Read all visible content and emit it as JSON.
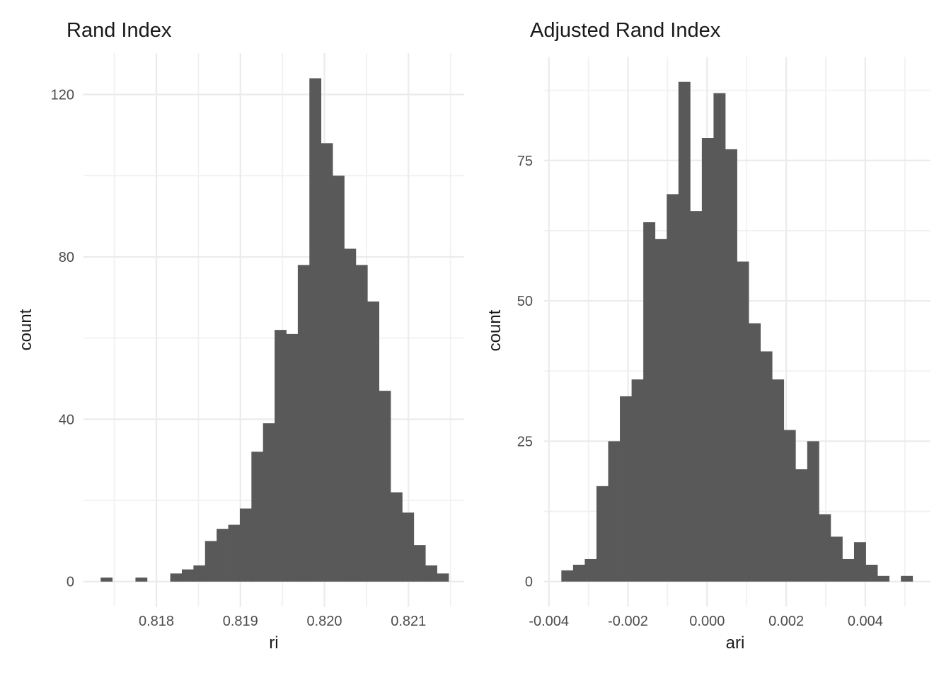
{
  "figure": {
    "background": "#ffffff",
    "n_simulations_per_panel": 1000
  },
  "style": {
    "bar_color": "#595959",
    "grid_major_color": "#EBEBEB",
    "grid_minor_color": "#F1F1F1",
    "tick_label_color": "#4D4D4D",
    "text_color": "#1A1A1A"
  },
  "chart_data": [
    {
      "type": "bar",
      "subtype": "histogram",
      "title": "Rand Index",
      "xlabel": "ri",
      "ylabel": "count",
      "legend": "none",
      "grid": true,
      "bin_start": 0.817337,
      "bin_width": 0.000138,
      "counts": [
        1,
        0,
        0,
        1,
        0,
        0,
        2,
        3,
        4,
        10,
        13,
        14,
        18,
        32,
        39,
        62,
        61,
        78,
        124,
        108,
        100,
        82,
        78,
        69,
        47,
        22,
        17,
        9,
        4,
        2
      ],
      "total_count": 1000,
      "xlim": [
        0.817131,
        0.821662
      ],
      "ylim": [
        -6.2,
        130.2
      ],
      "x_ticks": [
        {
          "v": 0.818,
          "label": "0.818"
        },
        {
          "v": 0.819,
          "label": "0.819"
        },
        {
          "v": 0.82,
          "label": "0.820"
        },
        {
          "v": 0.821,
          "label": "0.821"
        }
      ],
      "x_minor_ticks": [
        0.8175,
        0.8185,
        0.8195,
        0.8205,
        0.8215
      ],
      "y_ticks": [
        {
          "v": 0,
          "label": "0"
        },
        {
          "v": 40,
          "label": "40"
        },
        {
          "v": 80,
          "label": "80"
        },
        {
          "v": 120,
          "label": "120"
        }
      ],
      "y_minor_ticks": [
        20,
        60,
        100
      ]
    },
    {
      "type": "bar",
      "subtype": "histogram",
      "title": "Adjusted Rand Index",
      "xlabel": "ari",
      "ylabel": "count",
      "legend": "none",
      "grid": true,
      "bin_start": -0.003685,
      "bin_width": 0.000296,
      "counts": [
        2,
        3,
        4,
        17,
        25,
        33,
        36,
        64,
        61,
        69,
        89,
        66,
        79,
        87,
        77,
        57,
        46,
        41,
        36,
        27,
        20,
        25,
        12,
        8,
        4,
        7,
        3,
        1,
        0,
        1
      ],
      "total_count": 1000,
      "xlim": [
        -0.004129,
        0.005644
      ],
      "ylim": [
        -4.45,
        93.45
      ],
      "x_ticks": [
        {
          "v": -0.004,
          "label": "-0.004"
        },
        {
          "v": -0.002,
          "label": "-0.002"
        },
        {
          "v": 0.0,
          "label": "0.000"
        },
        {
          "v": 0.002,
          "label": "0.002"
        },
        {
          "v": 0.004,
          "label": "0.004"
        }
      ],
      "x_minor_ticks": [
        -0.003,
        -0.001,
        0.001,
        0.003,
        0.005
      ],
      "y_ticks": [
        {
          "v": 0,
          "label": "0"
        },
        {
          "v": 25,
          "label": "25"
        },
        {
          "v": 50,
          "label": "50"
        },
        {
          "v": 75,
          "label": "75"
        }
      ],
      "y_minor_ticks": [
        12.5,
        37.5,
        62.5,
        87.5
      ]
    }
  ]
}
